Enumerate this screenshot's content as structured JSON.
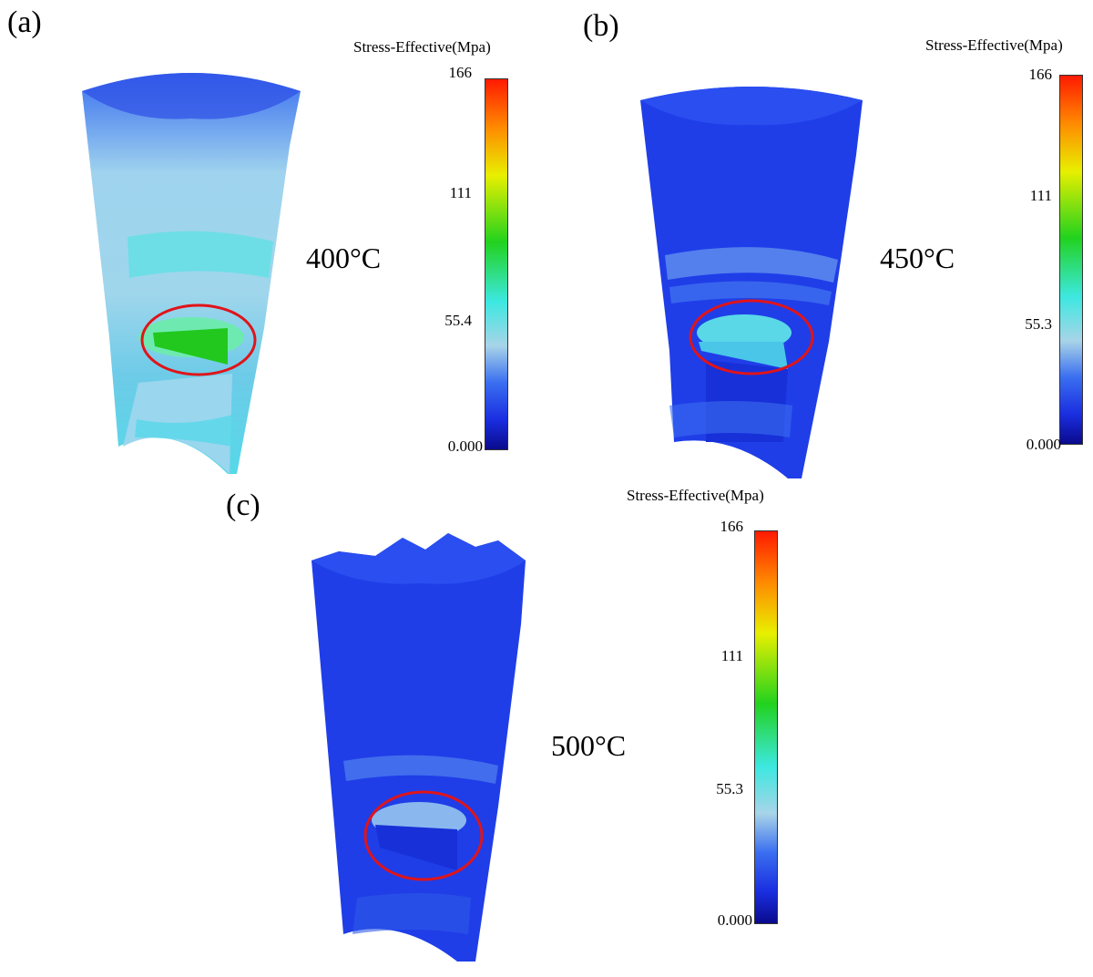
{
  "figure": {
    "panels": [
      {
        "id": "a",
        "label": "(a)",
        "temperature": "400°C",
        "legend": {
          "title": "Stress-Effective(Mpa)",
          "ticks": [
            "166",
            "111",
            "55.4",
            "0.000"
          ]
        }
      },
      {
        "id": "b",
        "label": "(b)",
        "temperature": "450°C",
        "legend": {
          "title": "Stress-Effective(Mpa)",
          "ticks": [
            "166",
            "111",
            "55.3",
            "0.000"
          ]
        }
      },
      {
        "id": "c",
        "label": "(c)",
        "temperature": "500°C",
        "legend": {
          "title": "Stress-Effective(Mpa)",
          "ticks": [
            "166",
            "111",
            "55.3",
            "0.000"
          ]
        }
      }
    ],
    "colors": {
      "scale": [
        "#0a0a8c",
        "#1a2ee0",
        "#3a6ef0",
        "#a8d4e8",
        "#3ce8e0",
        "#22d21e",
        "#e8ef00",
        "#ff8a00",
        "#ff1a00"
      ],
      "highlight_circle": "#e0141a"
    }
  }
}
